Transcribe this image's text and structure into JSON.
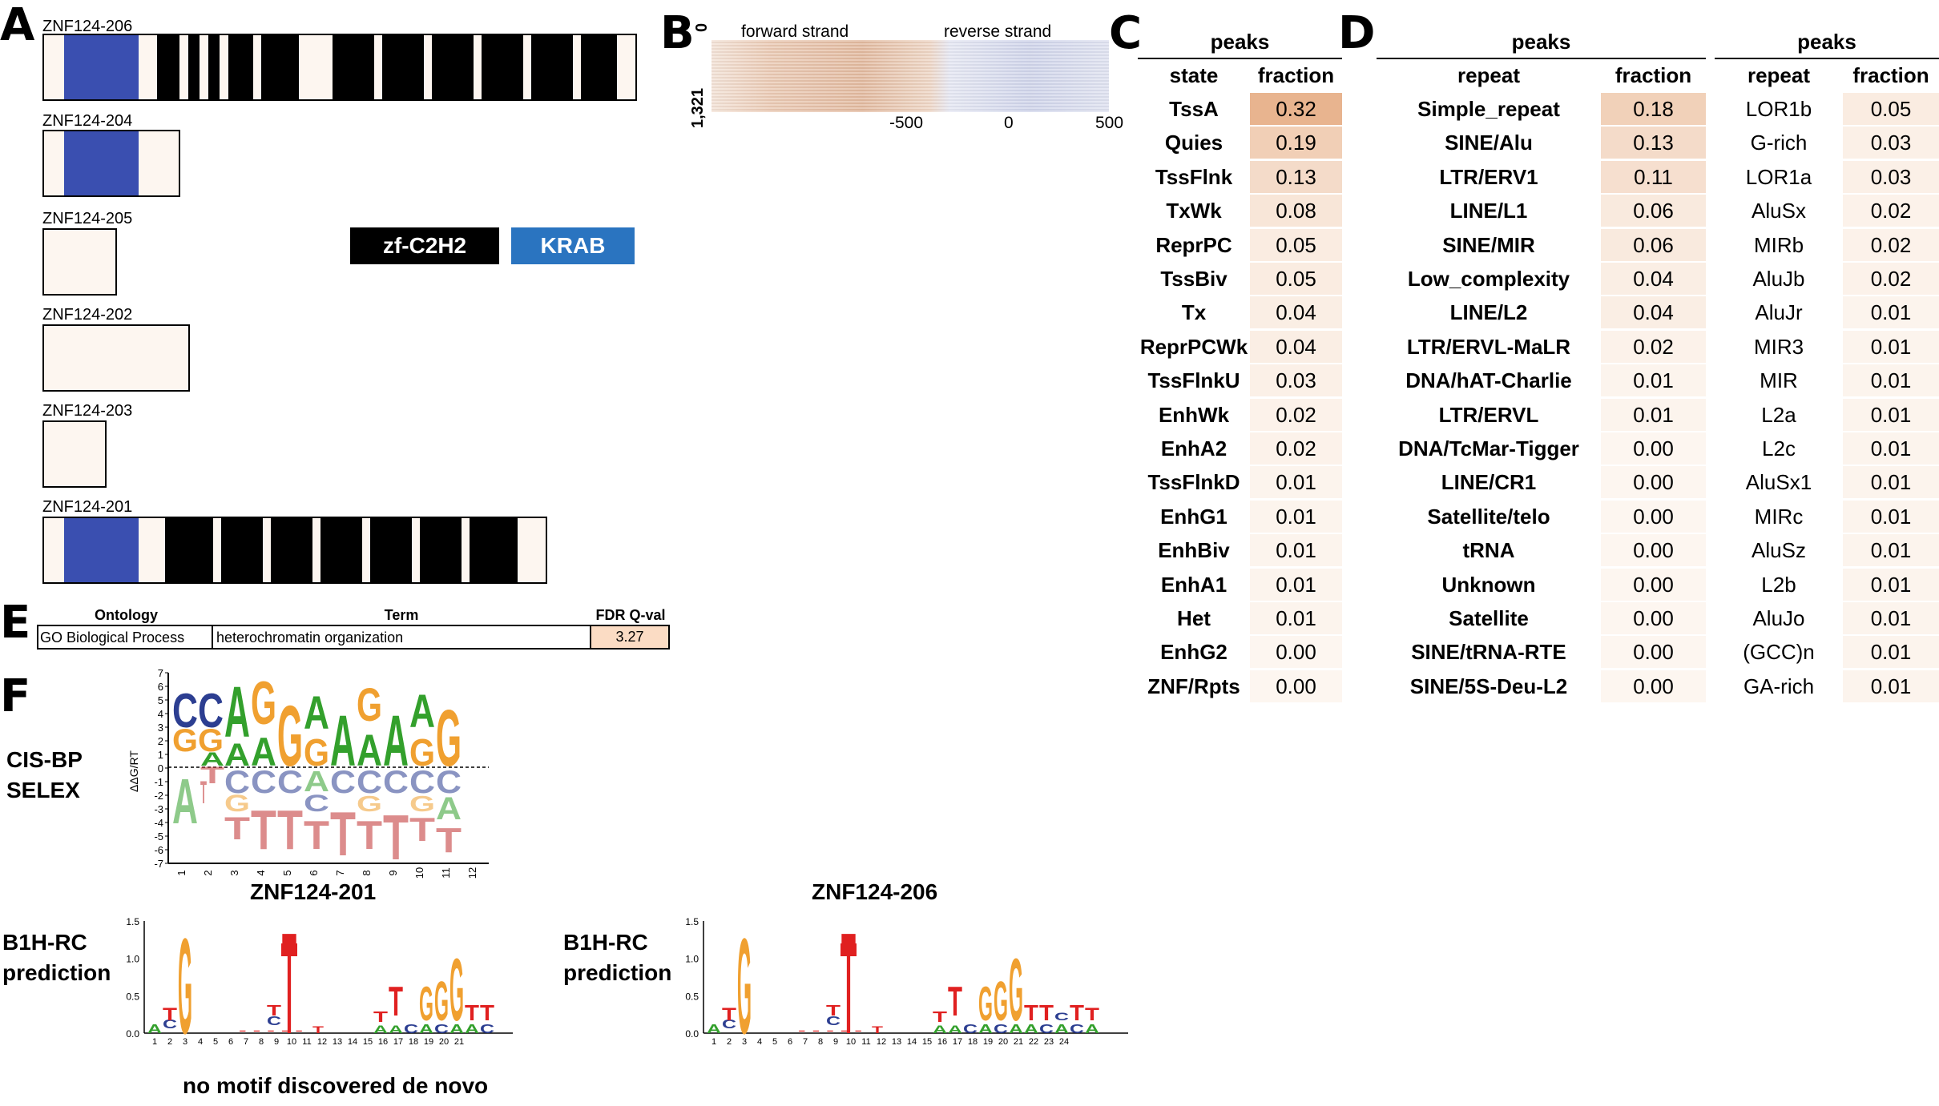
{
  "panels": {
    "A": "A",
    "B": "B",
    "C": "C",
    "D": "D",
    "E": "E",
    "F": "F"
  },
  "isoforms": [
    {
      "name": "ZNF124-206"
    },
    {
      "name": "ZNF124-204"
    },
    {
      "name": "ZNF124-205"
    },
    {
      "name": "ZNF124-202"
    },
    {
      "name": "ZNF124-203"
    },
    {
      "name": "ZNF124-201"
    }
  ],
  "legend": {
    "zf_label": "zf-C2H2",
    "krab_label": "KRAB",
    "zf_color": "#000000",
    "krab_color": "#2a74c0"
  },
  "heatmap": {
    "forward_label": "forward strand",
    "reverse_label": "reverse strand",
    "y_top": "0",
    "y_bottom": "1,321",
    "x_ticks": [
      "-500",
      "0",
      "500"
    ]
  },
  "tableC": {
    "title": "peaks",
    "col1": "state",
    "col2": "fraction",
    "rows": [
      {
        "label": "TssA",
        "value": "0.32",
        "v": 0.32
      },
      {
        "label": "Quies",
        "value": "0.19",
        "v": 0.19
      },
      {
        "label": "TssFlnk",
        "value": "0.13",
        "v": 0.13
      },
      {
        "label": "TxWk",
        "value": "0.08",
        "v": 0.08
      },
      {
        "label": "ReprPC",
        "value": "0.05",
        "v": 0.05
      },
      {
        "label": "TssBiv",
        "value": "0.05",
        "v": 0.05
      },
      {
        "label": "Tx",
        "value": "0.04",
        "v": 0.04
      },
      {
        "label": "ReprPCWk",
        "value": "0.04",
        "v": 0.04
      },
      {
        "label": "TssFlnkU",
        "value": "0.03",
        "v": 0.03
      },
      {
        "label": "EnhWk",
        "value": "0.02",
        "v": 0.02
      },
      {
        "label": "EnhA2",
        "value": "0.02",
        "v": 0.02
      },
      {
        "label": "TssFlnkD",
        "value": "0.01",
        "v": 0.01
      },
      {
        "label": "EnhG1",
        "value": "0.01",
        "v": 0.01
      },
      {
        "label": "EnhBiv",
        "value": "0.01",
        "v": 0.01
      },
      {
        "label": "EnhA1",
        "value": "0.01",
        "v": 0.01
      },
      {
        "label": "Het",
        "value": "0.01",
        "v": 0.01
      },
      {
        "label": "EnhG2",
        "value": "0.00",
        "v": 0.0
      },
      {
        "label": "ZNF/Rpts",
        "value": "0.00",
        "v": 0.0
      }
    ]
  },
  "tableD1": {
    "title": "peaks",
    "col1": "repeat",
    "col2": "fraction",
    "rows": [
      {
        "label": "Simple_repeat",
        "value": "0.18",
        "v": 0.18
      },
      {
        "label": "SINE/Alu",
        "value": "0.13",
        "v": 0.13
      },
      {
        "label": "LTR/ERV1",
        "value": "0.11",
        "v": 0.11
      },
      {
        "label": "LINE/L1",
        "value": "0.06",
        "v": 0.06
      },
      {
        "label": "SINE/MIR",
        "value": "0.06",
        "v": 0.06
      },
      {
        "label": "Low_complexity",
        "value": "0.04",
        "v": 0.04
      },
      {
        "label": "LINE/L2",
        "value": "0.04",
        "v": 0.04
      },
      {
        "label": "LTR/ERVL-MaLR",
        "value": "0.02",
        "v": 0.02
      },
      {
        "label": "DNA/hAT-Charlie",
        "value": "0.01",
        "v": 0.01
      },
      {
        "label": "LTR/ERVL",
        "value": "0.01",
        "v": 0.01
      },
      {
        "label": "DNA/TcMar-Tigger",
        "value": "0.00",
        "v": 0.0
      },
      {
        "label": "LINE/CR1",
        "value": "0.00",
        "v": 0.0
      },
      {
        "label": "Satellite/telo",
        "value": "0.00",
        "v": 0.0
      },
      {
        "label": "tRNA",
        "value": "0.00",
        "v": 0.0
      },
      {
        "label": "Unknown",
        "value": "0.00",
        "v": 0.0
      },
      {
        "label": "Satellite",
        "value": "0.00",
        "v": 0.0
      },
      {
        "label": "SINE/tRNA-RTE",
        "value": "0.00",
        "v": 0.0
      },
      {
        "label": "SINE/5S-Deu-L2",
        "value": "0.00",
        "v": 0.0
      }
    ]
  },
  "tableD2": {
    "title": "peaks",
    "col1": "repeat",
    "col2": "fraction",
    "rows": [
      {
        "label": "LOR1b",
        "value": "0.05",
        "v": 0.05
      },
      {
        "label": "G-rich",
        "value": "0.03",
        "v": 0.03
      },
      {
        "label": "LOR1a",
        "value": "0.03",
        "v": 0.03
      },
      {
        "label": "AluSx",
        "value": "0.02",
        "v": 0.02
      },
      {
        "label": "MIRb",
        "value": "0.02",
        "v": 0.02
      },
      {
        "label": "AluJb",
        "value": "0.02",
        "v": 0.02
      },
      {
        "label": "AluJr",
        "value": "0.01",
        "v": 0.01
      },
      {
        "label": "MIR3",
        "value": "0.01",
        "v": 0.01
      },
      {
        "label": "MIR",
        "value": "0.01",
        "v": 0.01
      },
      {
        "label": "L2a",
        "value": "0.01",
        "v": 0.01
      },
      {
        "label": "L2c",
        "value": "0.01",
        "v": 0.01
      },
      {
        "label": "AluSx1",
        "value": "0.01",
        "v": 0.01
      },
      {
        "label": "MIRc",
        "value": "0.01",
        "v": 0.01
      },
      {
        "label": "AluSz",
        "value": "0.01",
        "v": 0.01
      },
      {
        "label": "L2b",
        "value": "0.01",
        "v": 0.01
      },
      {
        "label": "AluJo",
        "value": "0.01",
        "v": 0.01
      },
      {
        "label": "(GCC)n",
        "value": "0.01",
        "v": 0.01
      },
      {
        "label": "GA-rich",
        "value": "0.01",
        "v": 0.01
      }
    ]
  },
  "tableE": {
    "h_ontology": "Ontology",
    "h_term": "Term",
    "h_fdr": "FDR Q-val",
    "ontology": "GO Biological Process",
    "term": "heterochromatin organization",
    "fdr": "3.27"
  },
  "motifs": {
    "cisbp_label_1": "CIS-BP",
    "cisbp_label_2": "SELEX",
    "ylabel": "ΔΔG/RT",
    "y_ticks": [
      "7",
      "6",
      "5",
      "4",
      "3",
      "2",
      "1",
      "0",
      "-1",
      "-2",
      "-3",
      "-4",
      "-5",
      "-6",
      "-7"
    ],
    "cisbp_positions": [
      "1",
      "2",
      "3",
      "4",
      "5",
      "6",
      "7",
      "8",
      "9",
      "10",
      "11",
      "12"
    ],
    "isoform_201": "ZNF124-201",
    "isoform_206": "ZNF124-206",
    "b1h_label_1": "B1H-RC",
    "b1h_label_2": "prediction",
    "b1h_y_ticks": [
      "1.5",
      "1.0",
      "0.5",
      "0.0"
    ],
    "b1h_201_positions": [
      "1",
      "2",
      "3",
      "4",
      "5",
      "6",
      "7",
      "8",
      "9",
      "10",
      "11",
      "12",
      "13",
      "14",
      "15",
      "16",
      "17",
      "18",
      "19",
      "20",
      "21"
    ],
    "b1h_206_positions": [
      "1",
      "2",
      "3",
      "4",
      "5",
      "6",
      "7",
      "8",
      "9",
      "10",
      "11",
      "12",
      "13",
      "14",
      "15",
      "16",
      "17",
      "18",
      "19",
      "20",
      "21",
      "22",
      "23",
      "24"
    ],
    "no_motif": "no motif discovered de novo"
  },
  "colors": {
    "heat_max": "#e8b48f",
    "heat_min": "#fdf6f0",
    "orange": "#f0a030",
    "green": "#33a02c",
    "blue": "#2c3e91",
    "red": "#e02020"
  }
}
